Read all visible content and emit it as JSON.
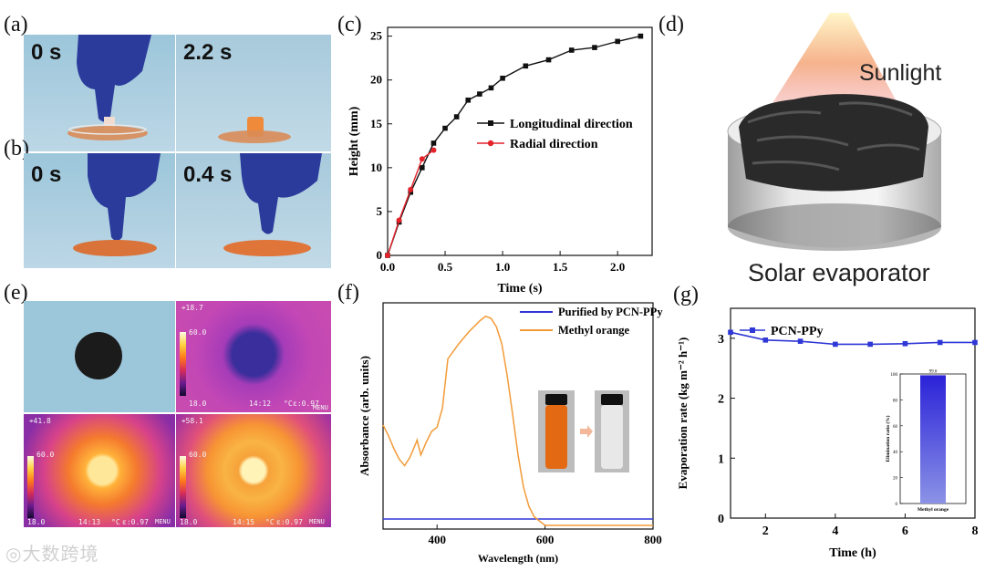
{
  "panels": {
    "a": "(a)",
    "b": "(b)",
    "c": "(c)",
    "d": "(d)",
    "e": "(e)",
    "f": "(f)",
    "g": "(g)"
  },
  "photos_a": {
    "left_time": "0 s",
    "right_time": "2.2 s"
  },
  "photos_b": {
    "left_time": "0 s",
    "right_time": "0.4 s"
  },
  "panel_d": {
    "sunlight": "Sunlight",
    "evaporator": "Solar evaporator"
  },
  "panel_e": {
    "cells": [
      {
        "temp": "18.7",
        "top_val": "60.0",
        "bottom_val": "18.0",
        "clock": "14:12",
        "unit": "°C",
        "emiss": "ε:0.97",
        "menu": "MENU"
      },
      {
        "temp": "41.8",
        "top_val": "60.0",
        "bottom_val": "18.0",
        "clock": "14:13",
        "unit": "°C",
        "emiss": "ε:0.97",
        "menu": "MENU"
      },
      {
        "temp": "58.1",
        "top_val": "60.0",
        "bottom_val": "18.0",
        "clock": "14:15",
        "unit": "°C",
        "emiss": "ε:0.97",
        "menu": "MENU"
      }
    ]
  },
  "chart_data": [
    {
      "id": "c",
      "type": "line",
      "xlabel": "Time (s)",
      "ylabel": "Height (mm)",
      "xlim": [
        0,
        2.3
      ],
      "ylim": [
        0,
        26
      ],
      "xticks": [
        "0.0",
        "0.5",
        "1.0",
        "1.5",
        "2.0"
      ],
      "yticks": [
        "0",
        "5",
        "10",
        "15",
        "20",
        "25"
      ],
      "series": [
        {
          "name": "Longitudinal direction",
          "color": "#111111",
          "x": [
            0,
            0.1,
            0.2,
            0.3,
            0.4,
            0.5,
            0.6,
            0.7,
            0.8,
            0.9,
            1.0,
            1.2,
            1.4,
            1.6,
            1.8,
            2.0,
            2.2
          ],
          "y": [
            0,
            3.8,
            7.2,
            10.0,
            12.8,
            14.5,
            15.8,
            17.7,
            18.4,
            19.1,
            20.2,
            21.6,
            22.3,
            23.4,
            23.7,
            24.4,
            25.0
          ]
        },
        {
          "name": "Radial direction",
          "color": "#e3222a",
          "x": [
            0,
            0.1,
            0.2,
            0.3,
            0.4
          ],
          "y": [
            0,
            4.0,
            7.5,
            11.0,
            12.0
          ]
        }
      ]
    },
    {
      "id": "f",
      "type": "line",
      "xlabel": "Wavelength (nm)",
      "ylabel": "Absorbance (arb. units)",
      "xlim": [
        300,
        800
      ],
      "xticks": [
        "400",
        "600",
        "800"
      ],
      "series": [
        {
          "name": "Purified by PCN-PPy",
          "color": "#2f37d6",
          "x": [
            300,
            400,
            500,
            600,
            700,
            800
          ],
          "y": [
            0.03,
            0.03,
            0.03,
            0.03,
            0.03,
            0.03
          ]
        },
        {
          "name": "Methyl orange",
          "color": "#f29b38",
          "x": [
            300,
            310,
            320,
            330,
            340,
            350,
            360,
            363,
            370,
            380,
            390,
            400,
            410,
            420,
            440,
            460,
            480,
            490,
            500,
            510,
            520,
            530,
            540,
            550,
            560,
            570,
            580,
            590,
            600,
            650,
            700,
            800
          ],
          "y": [
            0.47,
            0.42,
            0.36,
            0.31,
            0.28,
            0.32,
            0.38,
            0.4,
            0.33,
            0.39,
            0.44,
            0.46,
            0.55,
            0.78,
            0.85,
            0.91,
            0.96,
            0.98,
            0.97,
            0.93,
            0.85,
            0.7,
            0.52,
            0.33,
            0.18,
            0.09,
            0.04,
            0.02,
            0.0,
            0.0,
            0.0,
            0.0
          ]
        }
      ]
    },
    {
      "id": "g",
      "type": "line",
      "xlabel": "Time (h)",
      "ylabel": "Evaporation rate (kg m⁻² h⁻¹)",
      "xlim": [
        1,
        8
      ],
      "ylim": [
        0,
        3.5
      ],
      "xticks": [
        "2",
        "4",
        "6",
        "8"
      ],
      "yticks": [
        "0",
        "1",
        "2",
        "3"
      ],
      "series": [
        {
          "name": "PCN-PPy",
          "color": "#2f37d6",
          "x": [
            1,
            2,
            3,
            4,
            5,
            6,
            7,
            8
          ],
          "y": [
            3.1,
            2.97,
            2.95,
            2.9,
            2.9,
            2.91,
            2.93,
            2.93
          ]
        }
      ]
    },
    {
      "id": "g-inset",
      "type": "bar",
      "categories": [
        "Methyl orange"
      ],
      "values": [
        99.0
      ],
      "bar_label": "99.0",
      "ylabel": "Elimination ratio (%)",
      "ylim": [
        0,
        100
      ],
      "yticks": [
        "0",
        "20",
        "40",
        "60",
        "80",
        "100"
      ]
    }
  ],
  "watermark": "大数跨境"
}
